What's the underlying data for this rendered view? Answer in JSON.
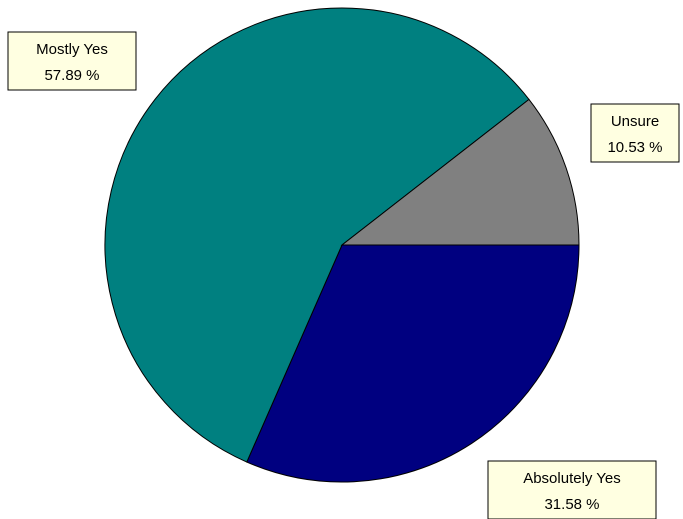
{
  "chart_data": {
    "type": "pie",
    "title": "",
    "slices": [
      {
        "label": "Absolutely Yes",
        "value": 31.58,
        "display": "31.58 %",
        "color": "#000080"
      },
      {
        "label": "Mostly Yes",
        "value": 57.89,
        "display": "57.89 %",
        "color": "#008080"
      },
      {
        "label": "Unsure",
        "value": 10.53,
        "display": "10.53 %",
        "color": "#808080"
      }
    ],
    "legend": "none",
    "labels": "outside-callout-boxes"
  }
}
